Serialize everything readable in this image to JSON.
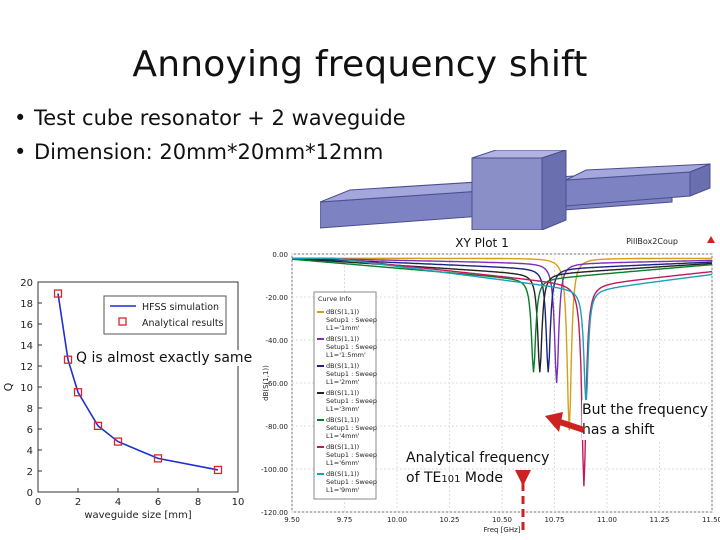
{
  "slide": {
    "title": "Annoying frequency shift",
    "bullets": [
      "Test cube resonator + 2 waveguide",
      "Dimension: 20mm*20mm*12mm"
    ]
  },
  "annotations": {
    "q_same": "Q is almost exactly same",
    "shift_line1": "But the frequency",
    "shift_line2": "has a shift",
    "analytical_line1": "Analytical frequency",
    "analytical_line2_prefix": "of TE",
    "analytical_line2_sub": "101",
    "analytical_line2_suffix": " Mode"
  },
  "colors": {
    "model_fill": "#8a8fc8",
    "hfss_line": "#1f2fd0",
    "analytical_marker": "#d62728",
    "arrow": "#cc2222"
  },
  "chart_data": [
    {
      "type": "line",
      "title": "",
      "xlabel": "waveguide size [mm]",
      "ylabel": "Q",
      "xlim": [
        0,
        10
      ],
      "ylim": [
        0,
        20
      ],
      "xticks": [
        0,
        2,
        4,
        6,
        8,
        10
      ],
      "yticks": [
        0,
        2,
        4,
        6,
        8,
        10,
        12,
        14,
        16,
        18,
        20
      ],
      "legend": [
        "HFSS simulation",
        "Analytical results"
      ],
      "series": [
        {
          "name": "HFSS simulation",
          "x": [
            1,
            1.5,
            2,
            3,
            4,
            6,
            9
          ],
          "y": [
            18.9,
            12.6,
            9.5,
            6.3,
            4.8,
            3.2,
            2.1
          ]
        },
        {
          "name": "Analytical results",
          "x": [
            1,
            1.5,
            2,
            3,
            4,
            6,
            9
          ],
          "y": [
            18.9,
            12.6,
            9.5,
            6.3,
            4.8,
            3.2,
            2.1
          ]
        }
      ]
    },
    {
      "type": "line",
      "title": "XY Plot 1",
      "header_right": "PillBox2Coup",
      "xlabel": "Freq [GHz]",
      "ylabel": "dB(S(1,1))",
      "xlim": [
        9.5,
        11.5
      ],
      "ylim": [
        -120,
        0
      ],
      "xticks": [
        "9.50",
        "9.75",
        "10.00",
        "10.25",
        "10.50",
        "10.75",
        "11.00",
        "11.25",
        "11.50"
      ],
      "yticks": [
        "0.00",
        "-20.00",
        "-40.00",
        "-60.00",
        "-80.00",
        "-100.00",
        "-120.00"
      ],
      "legend_title": "Curve Info",
      "legend": [
        "dB(S(1,1)) Setup1 : Sweep L1='1mm'",
        "dB(S(1,1)) Setup1 : Sweep L1='1.5mm'",
        "dB(S(1,1)) Setup1 : Sweep L1='2mm'",
        "dB(S(1,1)) Setup1 : Sweep L1='3mm'",
        "dB(S(1,1)) Setup1 : Sweep L1='4mm'",
        "dB(S(1,1)) Setup1 : Sweep L1='6mm'",
        "dB(S(1,1)) Setup1 : Sweep L1='9mm'"
      ],
      "series": [
        {
          "name": "L1='1mm'",
          "color": "#d4a017",
          "f0": 10.82,
          "depth": -82
        },
        {
          "name": "L1='1.5mm'",
          "color": "#7b2fbe",
          "f0": 10.76,
          "depth": -60
        },
        {
          "name": "L1='2mm'",
          "color": "#1a237e",
          "f0": 10.72,
          "depth": -55
        },
        {
          "name": "L1='3mm'",
          "color": "#222222",
          "f0": 10.68,
          "depth": -55
        },
        {
          "name": "L1='4mm'",
          "color": "#0a7d2a",
          "f0": 10.65,
          "depth": -55
        },
        {
          "name": "L1='6mm'",
          "color": "#c2185b",
          "f0": 10.89,
          "depth": -108
        },
        {
          "name": "L1='9mm'",
          "color": "#17a2b8",
          "f0": 10.9,
          "depth": -70
        }
      ]
    }
  ]
}
